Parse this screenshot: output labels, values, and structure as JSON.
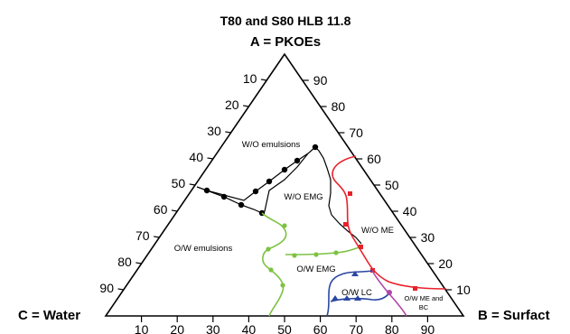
{
  "title": {
    "line1": "T80 and S80 HLB 11.8",
    "line2": "A = PKOEs"
  },
  "vertices": {
    "left": "C = Water",
    "right": "B = Surfact"
  },
  "ticks": {
    "left": [
      "10",
      "20",
      "30",
      "40",
      "50",
      "60",
      "70",
      "80",
      "90"
    ],
    "right": [
      "90",
      "80",
      "70",
      "60",
      "50",
      "40",
      "30",
      "20",
      "10"
    ],
    "bottom": [
      "10",
      "20",
      "30",
      "40",
      "50",
      "60",
      "70",
      "80",
      "90"
    ]
  },
  "regions": {
    "wo_emulsions": "W/O emulsions",
    "wo_emg": "W/O EMG",
    "wo_me": "W/O ME",
    "ow_emulsions": "O/W emulsions",
    "ow_emg": "O/W  EMG",
    "ow_lc": "O/W LC",
    "ow_me_bc_1": "O/W ME and",
    "ow_me_bc_2": "BC"
  },
  "colors": {
    "black": "#000000",
    "red": "#e8212b",
    "green": "#7dc242",
    "blue": "#2a46a3",
    "purple": "#b046a8"
  }
}
